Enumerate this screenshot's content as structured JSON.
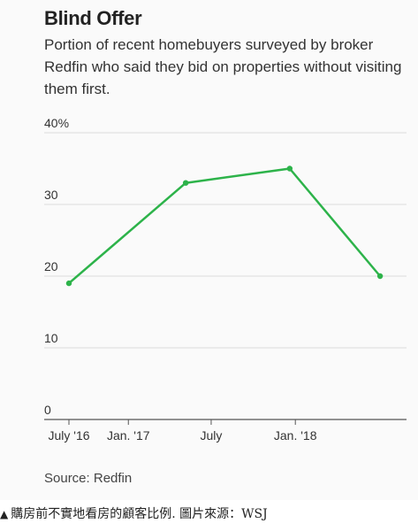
{
  "chart_data": {
    "type": "line",
    "title": "Blind Offer",
    "subtitle": "Portion of recent homebuyers surveyed by broker Redfin who said they bid on properties without visiting them first.",
    "x": [
      "2016-07",
      "2017-04",
      "2017-12",
      "2018-07"
    ],
    "x_tick_labels": [
      "July '16",
      "Jan. '17",
      "July",
      "Jan. '18"
    ],
    "x_ticks": [
      "2016-07",
      "2017-01",
      "2017-07",
      "2018-01"
    ],
    "series": [
      {
        "values": [
          19,
          33,
          35,
          20
        ],
        "color": "#2db34a"
      }
    ],
    "ylim": [
      0,
      40
    ],
    "y_ticks": [
      0,
      10,
      20,
      30,
      40
    ],
    "y_tick_labels": [
      "0",
      "10",
      "20",
      "30",
      "40%"
    ],
    "grid": true,
    "source": "Source: Redfin"
  },
  "caption": {
    "arrow": "▲",
    "text": "購房前不實地看房的顧客比例. 圖片來源：WSJ"
  }
}
